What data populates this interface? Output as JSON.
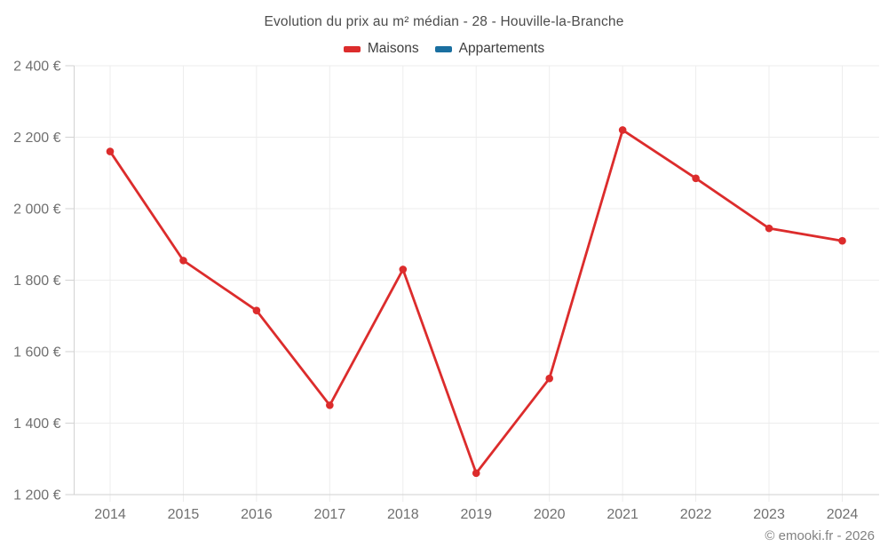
{
  "chart_data": {
    "type": "line",
    "title": "Evolution du prix au m² médian - 28 - Houville-la-Branche",
    "categories": [
      "2014",
      "2015",
      "2016",
      "2017",
      "2018",
      "2019",
      "2020",
      "2021",
      "2022",
      "2023",
      "2024"
    ],
    "series": [
      {
        "name": "Maisons",
        "color": "#dc2c2c",
        "values": [
          2160,
          1855,
          1715,
          1450,
          1830,
          1260,
          1525,
          2220,
          2085,
          1945,
          1910
        ]
      },
      {
        "name": "Appartements",
        "color": "#1a6fa0",
        "values": []
      }
    ],
    "ylim": [
      1200,
      2400
    ],
    "ytick_step": 200,
    "yticks": [
      {
        "value": 1200,
        "label": "1 200 €"
      },
      {
        "value": 1400,
        "label": "1 400 €"
      },
      {
        "value": 1600,
        "label": "1 600 €"
      },
      {
        "value": 1800,
        "label": "1 800 €"
      },
      {
        "value": 2000,
        "label": "2 000 €"
      },
      {
        "value": 2200,
        "label": "2 200 €"
      },
      {
        "value": 2400,
        "label": "2 400 €"
      }
    ],
    "grid": true,
    "legend_position": "top",
    "xlabel": "",
    "ylabel": ""
  },
  "footer": {
    "copyright": "© emooki.fr - 2026"
  },
  "colors": {
    "maisons_red": "#dc2c2c",
    "appartements_blue": "#1a6fa0",
    "grid_line": "#ededed",
    "axis_line": "#d2d2d2",
    "tick_label": "#707070",
    "title_text": "#4c4c4c",
    "footer_text": "#828282"
  }
}
